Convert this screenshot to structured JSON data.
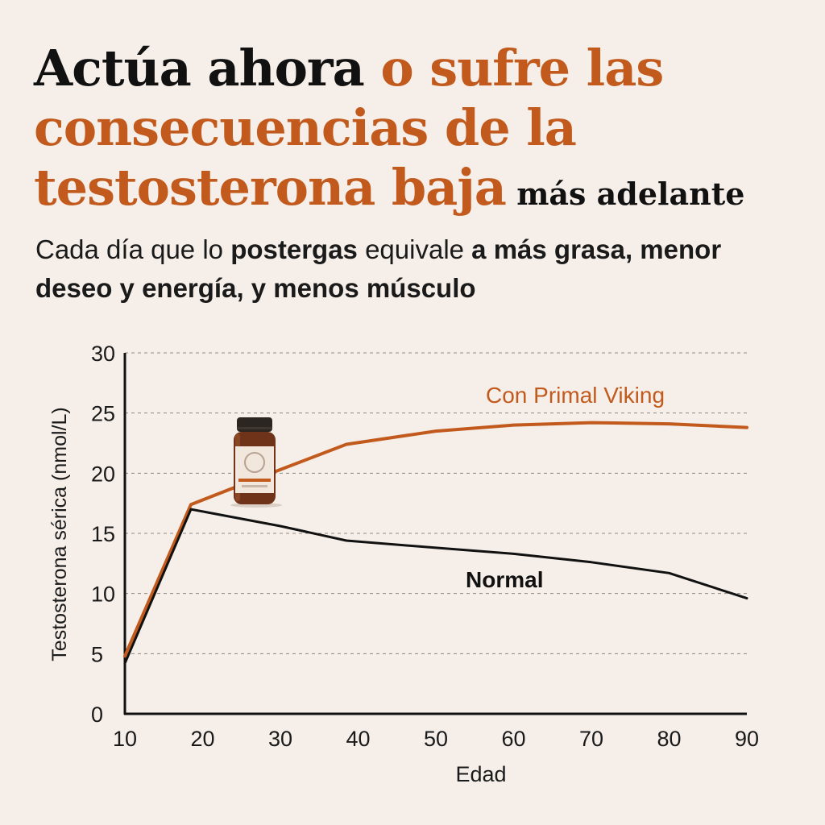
{
  "headline": {
    "part1": "Actúa ahora ",
    "part2": "o sufre las consecuencias de la testosterona baja",
    "part3": " más adelante"
  },
  "subtitle": {
    "t1": "Cada día que lo ",
    "b1": "postergas",
    "t2": " equivale ",
    "b2": "a más grasa, menor deseo y energía, y menos músculo"
  },
  "colors": {
    "accent": "#c15a1c",
    "dark": "#111111",
    "background": "#f6efe9"
  },
  "product_icon": "supplement-jar-icon",
  "chart_data": {
    "type": "line",
    "xlabel": "Edad",
    "ylabel": "Testosterona sérica (nmol/L)",
    "xlim": [
      10,
      90
    ],
    "ylim": [
      0,
      30
    ],
    "xticks": [
      10,
      20,
      30,
      40,
      50,
      60,
      70,
      80,
      90
    ],
    "yticks": [
      0,
      5,
      10,
      15,
      20,
      25,
      30
    ],
    "grid": "horizontal dashed",
    "series": [
      {
        "name": "Con Primal Viking",
        "color": "#c15a1c",
        "x": [
          10,
          18.5,
          30,
          38.5,
          50,
          60,
          70,
          80,
          90
        ],
        "y": [
          4.8,
          17.4,
          20.3,
          22.4,
          23.5,
          24.0,
          24.2,
          24.1,
          23.8
        ]
      },
      {
        "name": "Normal",
        "color": "#111111",
        "x": [
          10,
          18.5,
          30,
          38.5,
          50,
          60,
          70,
          80,
          90
        ],
        "y": [
          4.2,
          17.0,
          15.6,
          14.4,
          13.8,
          13.3,
          12.6,
          11.7,
          9.6
        ]
      }
    ]
  }
}
